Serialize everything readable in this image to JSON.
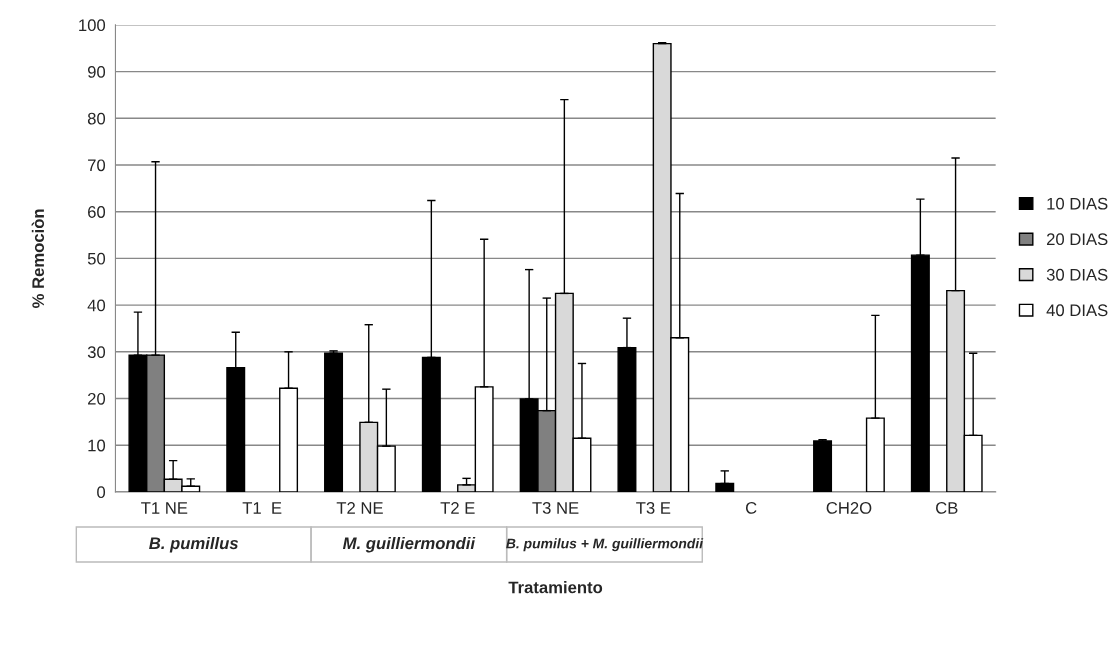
{
  "chart_data": {
    "type": "bar",
    "xlabel": "Tratamiento",
    "ylabel": "% Remociòn",
    "categories": [
      "T1 NE",
      "T1  E",
      "T2 NE",
      "T2 E",
      "T3 NE",
      "T3 E",
      "C",
      "CH2O",
      "CB"
    ],
    "series": [
      {
        "name": "10 DIAS",
        "color": "#000000",
        "values": [
          29.3,
          26.6,
          29.7,
          28.8,
          19.9,
          30.9,
          1.8,
          10.9,
          50.7
        ],
        "errors": [
          [
            29.3,
            38.5
          ],
          [
            26.6,
            34.2
          ],
          [
            29.7,
            30.2
          ],
          [
            28.8,
            62.4
          ],
          [
            19.9,
            47.6
          ],
          [
            30.9,
            37.2
          ],
          [
            1.8,
            4.5
          ],
          [
            10.9,
            11.2
          ],
          [
            50.7,
            62.7
          ]
        ]
      },
      {
        "name": "20 DIAS",
        "color": "#808080",
        "values": [
          29.3,
          null,
          null,
          null,
          17.4,
          null,
          null,
          null,
          null
        ],
        "errors": [
          [
            29.3,
            70.7
          ],
          null,
          null,
          null,
          [
            17.4,
            41.5
          ],
          null,
          null,
          null,
          null
        ]
      },
      {
        "name": "30 DIAS",
        "color": "#d9d9d9",
        "values": [
          2.7,
          null,
          14.9,
          1.5,
          42.5,
          96,
          null,
          null,
          43.1
        ],
        "errors": [
          [
            2.7,
            6.7
          ],
          null,
          [
            14.9,
            35.8
          ],
          [
            1.5,
            2.9
          ],
          [
            42.5,
            84
          ],
          [
            96,
            96.2
          ],
          null,
          null,
          [
            43.1,
            71.5
          ]
        ]
      },
      {
        "name": "40 DIAS",
        "color": "#ffffff",
        "values": [
          1.2,
          22.2,
          9.8,
          22.5,
          11.5,
          33,
          null,
          15.8,
          12.1
        ],
        "errors": [
          [
            1.2,
            2.8
          ],
          [
            22.2,
            30
          ],
          [
            9.8,
            22
          ],
          [
            22.5,
            54.1
          ],
          [
            11.5,
            27.5
          ],
          [
            33,
            63.9
          ],
          null,
          [
            15.8,
            37.8
          ],
          [
            12.1,
            29.7
          ]
        ]
      }
    ],
    "ylim": [
      0,
      100
    ],
    "yticks": [
      0,
      10,
      20,
      30,
      40,
      50,
      60,
      70,
      80,
      90,
      100
    ],
    "grid": "y",
    "legend": "right",
    "annotations": [
      "B. pumillus",
      "M. guilliermondii",
      "B. pumilus + M. guilliermondii"
    ]
  }
}
